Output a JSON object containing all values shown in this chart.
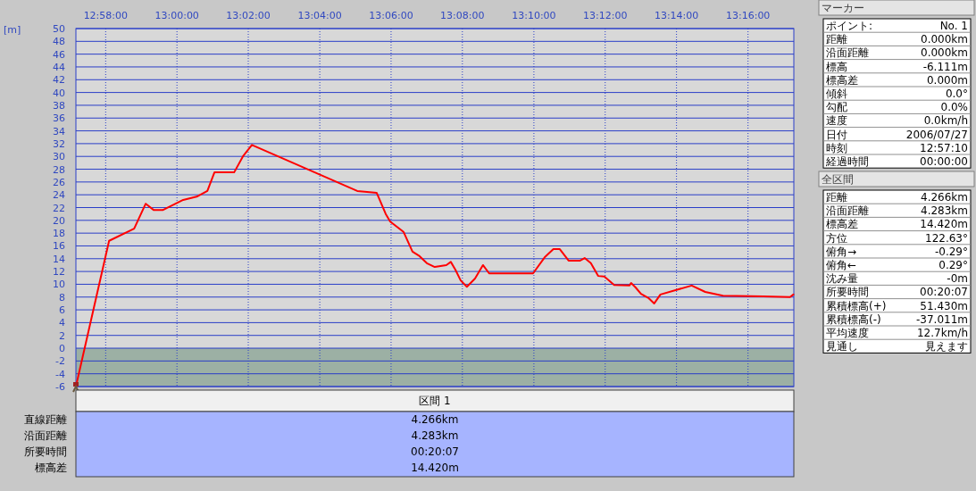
{
  "chart_data": [
    {
      "type": "line",
      "ylabel": "[m]",
      "grid": true,
      "marker": "none",
      "line_style": "solid",
      "xlim": [
        12.9528,
        13.2881
      ],
      "ylim": [
        -6,
        50
      ],
      "xticks": [
        {
          "value": 12.9667,
          "label": "12:58:00"
        },
        {
          "value": 13.0,
          "label": "13:00:00"
        },
        {
          "value": 13.0333,
          "label": "13:02:00"
        },
        {
          "value": 13.0667,
          "label": "13:04:00"
        },
        {
          "value": 13.1,
          "label": "13:06:00"
        },
        {
          "value": 13.1333,
          "label": "13:08:00"
        },
        {
          "value": 13.1667,
          "label": "13:10:00"
        },
        {
          "value": 13.2,
          "label": "13:12:00"
        },
        {
          "value": 13.2333,
          "label": "13:14:00"
        },
        {
          "value": 13.2667,
          "label": "13:16:00"
        }
      ],
      "yticks": [
        -6,
        -4,
        -2,
        0,
        2,
        4,
        6,
        8,
        10,
        12,
        14,
        16,
        18,
        20,
        22,
        24,
        26,
        28,
        30,
        32,
        34,
        36,
        38,
        40,
        42,
        44,
        46,
        48,
        50
      ],
      "bands": [
        {
          "axis": "y",
          "from": -6,
          "to": 0,
          "color": "#9cb0a4"
        }
      ],
      "series": [
        {
          "color": "#ff0000",
          "x": [
            12.9528,
            12.9683,
            12.98,
            12.9854,
            12.9892,
            12.9933,
            13.0029,
            13.0092,
            13.0142,
            13.0175,
            13.0267,
            13.0308,
            13.035,
            13.0842,
            13.0933,
            13.0975,
            13.0996,
            13.1058,
            13.11,
            13.1133,
            13.1167,
            13.1204,
            13.1258,
            13.1279,
            13.13,
            13.1325,
            13.1354,
            13.1392,
            13.1429,
            13.1458,
            13.1663,
            13.1717,
            13.1758,
            13.1788,
            13.1829,
            13.1883,
            13.1904,
            13.1933,
            13.1967,
            13.1996,
            13.2042,
            13.2113,
            13.2121,
            13.2142,
            13.2167,
            13.2204,
            13.2229,
            13.2258,
            13.2404,
            13.2467,
            13.255,
            13.2738,
            13.2863,
            13.2879
          ],
          "values": [
            -6.0,
            16.8,
            18.7,
            22.6,
            21.6,
            21.6,
            23.2,
            23.7,
            24.6,
            27.5,
            27.5,
            30.0,
            31.8,
            24.6,
            24.3,
            21.0,
            19.8,
            18.2,
            15.1,
            14.4,
            13.3,
            12.7,
            13.0,
            13.5,
            12.3,
            10.6,
            9.6,
            10.9,
            13.0,
            11.7,
            11.7,
            14.2,
            15.5,
            15.5,
            13.7,
            13.7,
            14.1,
            13.3,
            11.3,
            11.2,
            9.9,
            9.8,
            10.2,
            9.5,
            8.5,
            7.8,
            7.0,
            8.4,
            9.8,
            8.8,
            8.2,
            8.1,
            8.0,
            8.4
          ]
        }
      ]
    },
    {
      "type": "other",
      "categories": [
        "区間 1"
      ],
      "y_categories": [
        "直線距離",
        "沿面距離",
        "所要時間",
        "標高差"
      ],
      "cell_labels": [
        [
          "4.266km"
        ],
        [
          "4.283km"
        ],
        [
          "00:20:07"
        ],
        [
          "14.420m"
        ]
      ]
    },
    {
      "type": "other",
      "title": "マーカー",
      "y_categories": [
        "ポイント:",
        "距離",
        "沿面距離",
        "標高",
        "標高差",
        "傾斜",
        "勾配",
        "速度",
        "日付",
        "時刻",
        "経過時間"
      ],
      "cell_labels": [
        [
          "No. 1"
        ],
        [
          "0.000km"
        ],
        [
          "0.000km"
        ],
        [
          "-6.111m"
        ],
        [
          "0.000m"
        ],
        [
          "0.0°"
        ],
        [
          "0.0%"
        ],
        [
          "0.0km/h"
        ],
        [
          "2006/07/27"
        ],
        [
          "12:57:10"
        ],
        [
          "00:00:00"
        ]
      ]
    },
    {
      "type": "other",
      "title": "全区間",
      "y_categories": [
        "距離",
        "沿面距離",
        "標高差",
        "方位",
        "俯角→",
        "俯角←",
        "沈み量",
        "所要時間",
        "累積標高(+)",
        "累積標高(-)",
        "平均速度",
        "見通し"
      ],
      "cell_labels": [
        [
          "4.266km"
        ],
        [
          "4.283km"
        ],
        [
          "14.420m"
        ],
        [
          "122.63°"
        ],
        [
          "-0.29°"
        ],
        [
          "0.29°"
        ],
        [
          "-0m"
        ],
        [
          "00:20:07"
        ],
        [
          "51.430m"
        ],
        [
          "-37.011m"
        ],
        [
          "12.7km/h"
        ],
        [
          "見えます"
        ]
      ]
    }
  ]
}
